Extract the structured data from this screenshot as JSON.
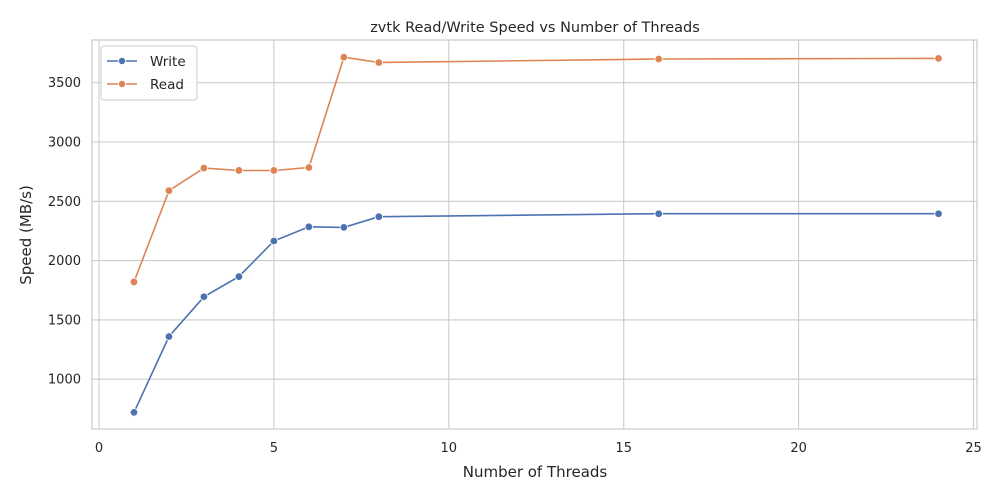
{
  "chart_data": {
    "type": "line",
    "title": "zvtk Read/Write Speed vs Number of Threads",
    "xlabel": "Number of Threads",
    "ylabel": "Speed (MB/s)",
    "xlim": [
      -0.2,
      25.1
    ],
    "ylim": [
      580,
      3860
    ],
    "xticks": [
      0,
      5,
      10,
      15,
      20,
      25
    ],
    "yticks": [
      1000,
      1500,
      2000,
      2500,
      3000,
      3500
    ],
    "grid": true,
    "legend_position": "upper left",
    "x": [
      1,
      2,
      3,
      4,
      5,
      6,
      7,
      8,
      16,
      24
    ],
    "series": [
      {
        "name": "Write",
        "color": "#4c72b0",
        "values": [
          720,
          1360,
          1695,
          1865,
          2165,
          2285,
          2280,
          2370,
          2395,
          2395
        ]
      },
      {
        "name": "Read",
        "color": "#dd8452",
        "values": [
          1820,
          2590,
          2780,
          2760,
          2760,
          2785,
          3715,
          3670,
          3700,
          3705
        ]
      }
    ]
  }
}
